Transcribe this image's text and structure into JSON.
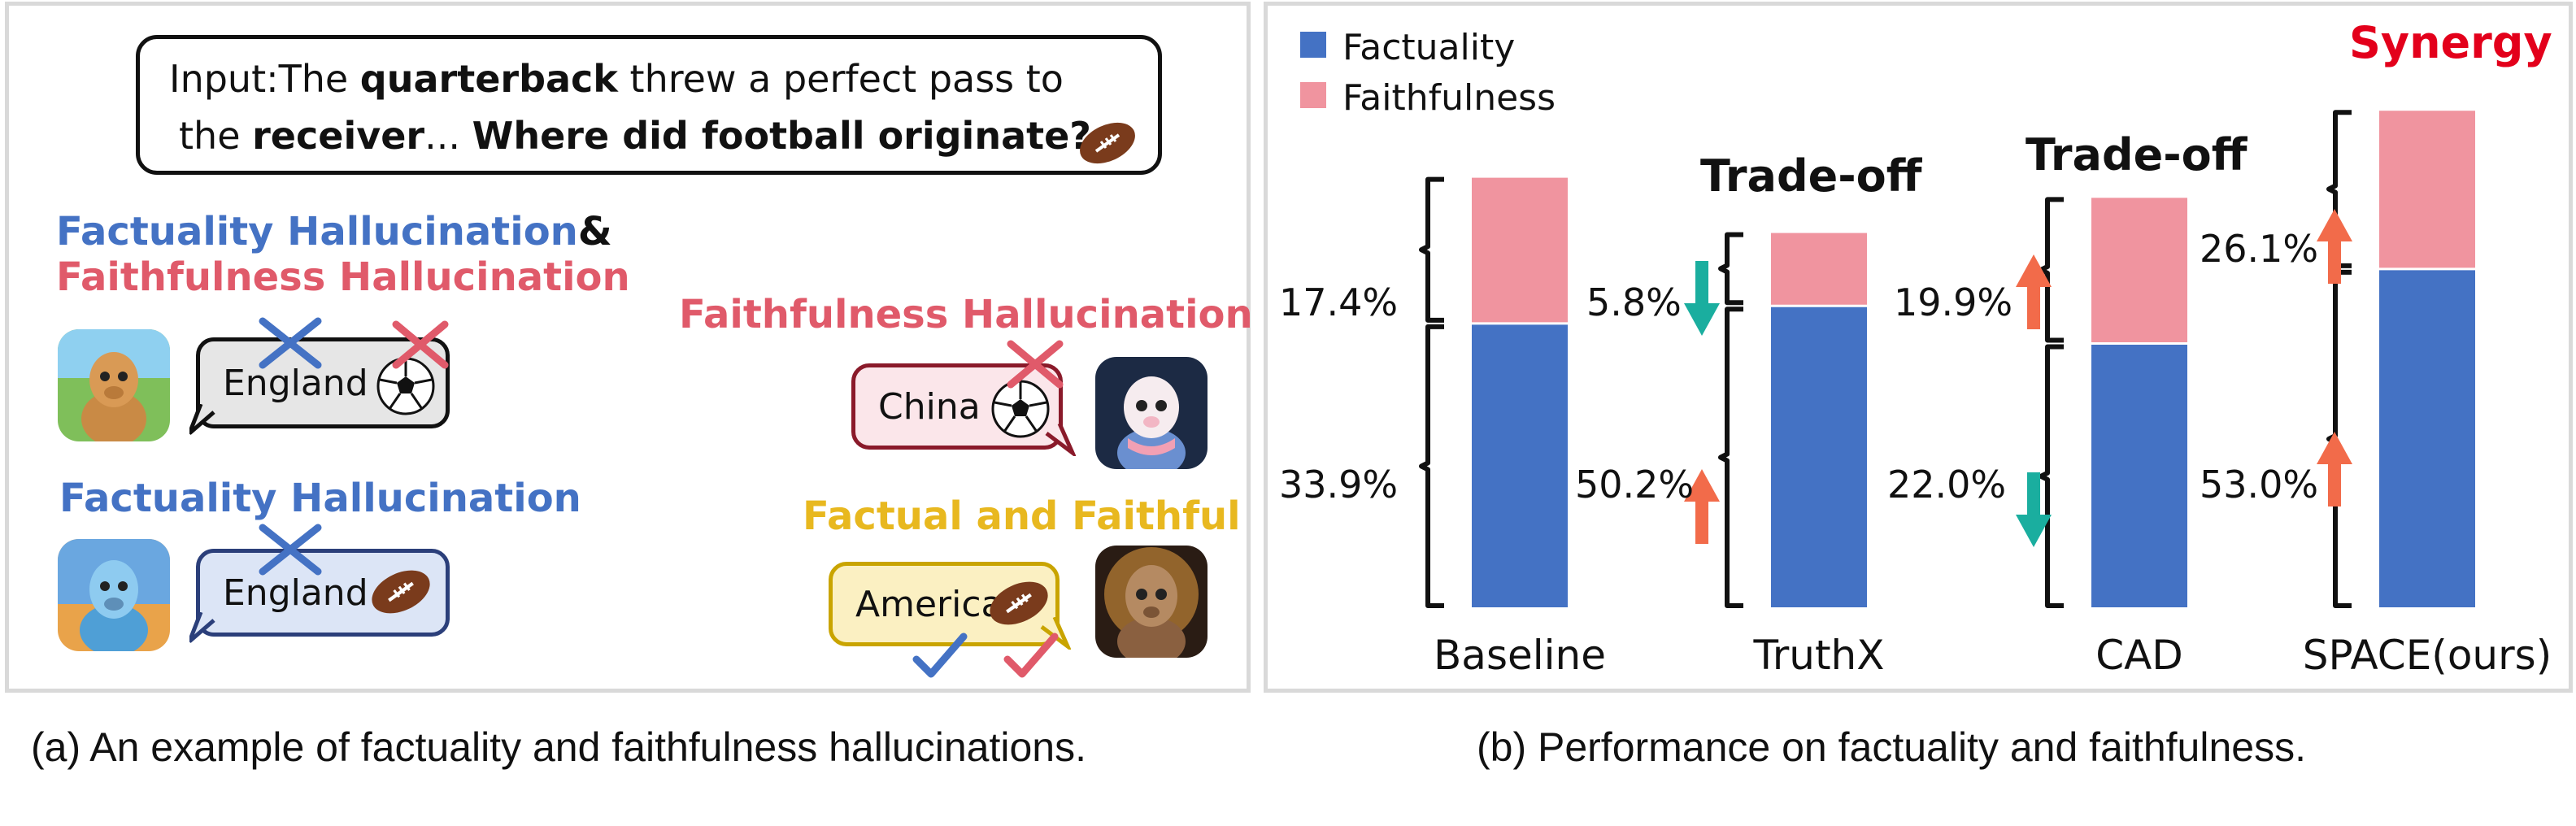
{
  "panel_a": {
    "input_prefix": "Input:The ",
    "input_bold1": "quarterback",
    "input_mid": " threw a perfect pass to",
    "input_line2_pre": "the ",
    "input_bold2": "receiver",
    "input_line2_mid": "... ",
    "input_bold3": "Where did football originate?",
    "both_title_line1": "Factuality Hallucination",
    "both_ampersand": "&",
    "both_title_line2": "Faithfulness Hallucination",
    "faithfulness_title": "Faithfulness Hallucination",
    "factuality_title": "Factuality Hallucination",
    "correct_title": "Factual and Faithful",
    "answer_both": "England",
    "answer_faith": "China",
    "answer_fact": "England",
    "answer_correct": "America",
    "icons": [
      "football-icon",
      "soccer-ball-icon",
      "cross-mark-icon",
      "check-mark-icon",
      "alpaca-avatar"
    ]
  },
  "chart_data": {
    "type": "bar",
    "stacked": true,
    "categories": [
      "Baseline",
      "TruthX",
      "CAD",
      "SPACE(ours)"
    ],
    "series": [
      {
        "name": "Factuality",
        "color": "#4472c4",
        "values": [
          33.9,
          36.0,
          31.5,
          40.4
        ]
      },
      {
        "name": "Faithfulness",
        "color": "#f0949f",
        "values": [
          17.4,
          8.7,
          17.4,
          18.9
        ]
      }
    ],
    "legend": [
      "Factuality",
      "Faithfulness"
    ],
    "legend_position": "top-left",
    "ylim": [
      0,
      62
    ],
    "bracket_labels": {
      "baseline_factuality": "33.9%",
      "baseline_faithfulness": "17.4%",
      "truthx_factuality_change": "50.2%",
      "truthx_faithfulness_change": "5.8%",
      "cad_factuality_change": "22.0%",
      "cad_faithfulness_change": "19.9%",
      "space_factuality_change": "53.0%",
      "space_faithfulness_change": "26.1%"
    },
    "annotations": {
      "tradeoff": "Trade-off",
      "synergy": "Synergy"
    },
    "colors": {
      "up_arrow": "#f26b4a",
      "down_arrow": "#1aae9f",
      "synergy": "#e3001b"
    }
  },
  "captions": {
    "a": "(a) An example of factuality and faithfulness hallucinations.",
    "b": "(b) Performance on factuality and faithfulness."
  }
}
